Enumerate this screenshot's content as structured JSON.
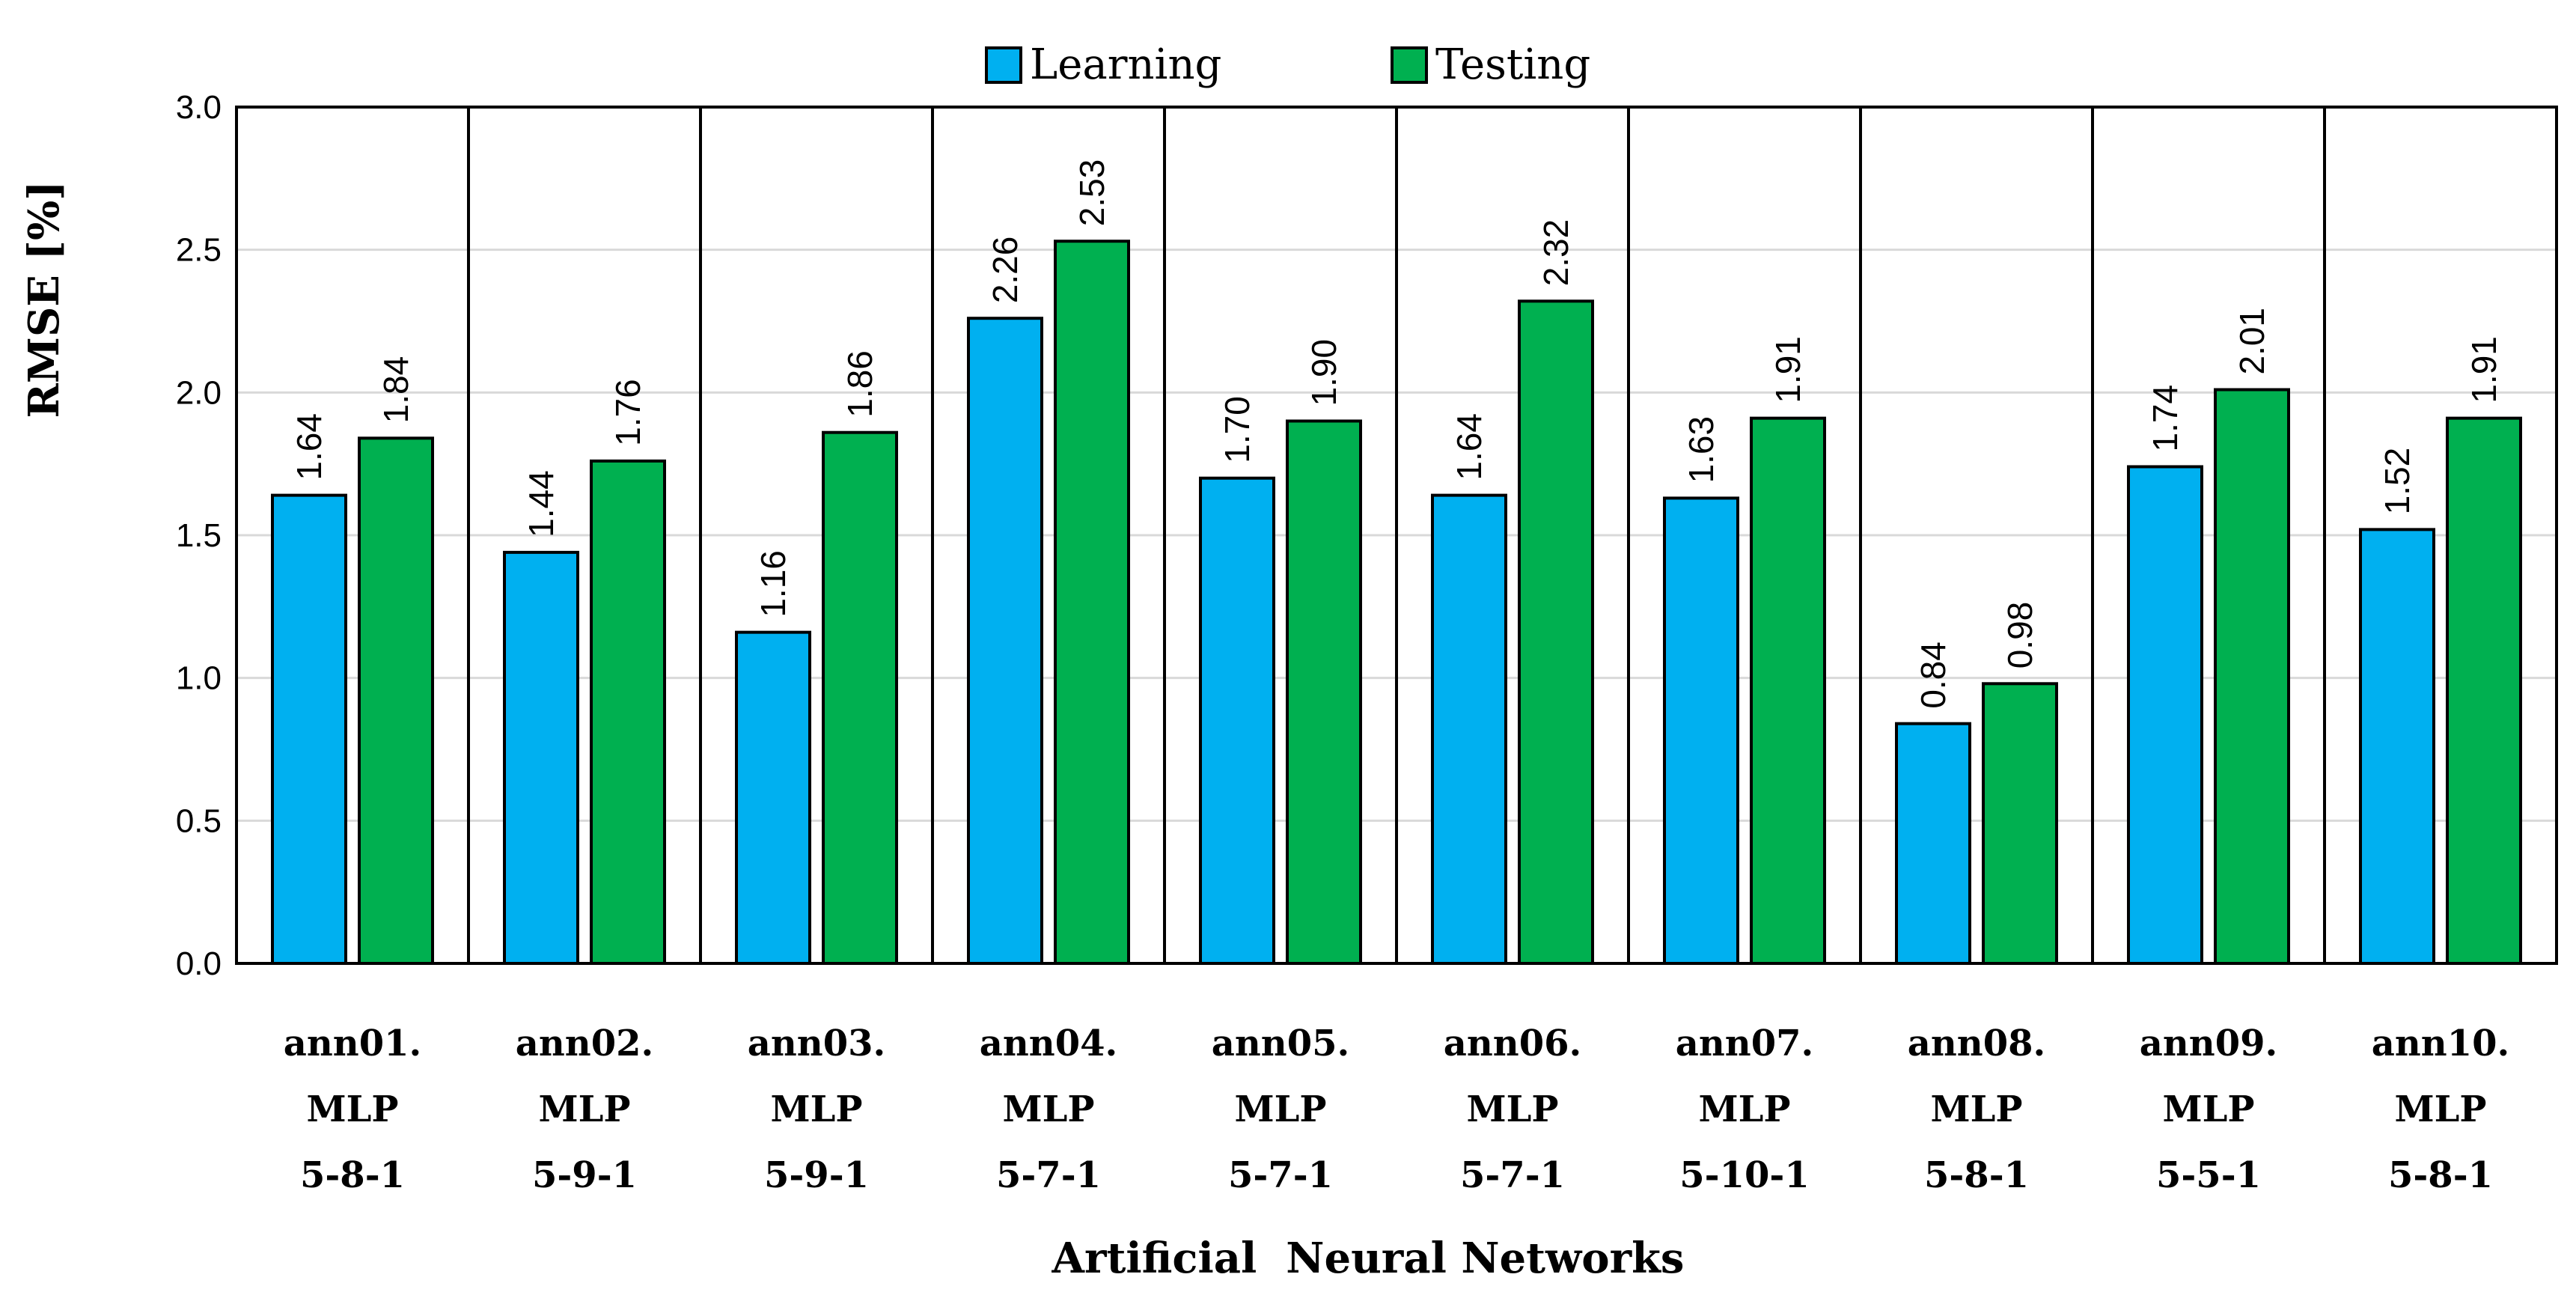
{
  "chart_data": {
    "type": "bar",
    "title": "",
    "xlabel": "Artificial  Neural Networks",
    "ylabel": "RMSE   [%]",
    "ylim": [
      0,
      3.0
    ],
    "yticks": [
      "0.0",
      "0.5",
      "1.0",
      "1.5",
      "2.0",
      "2.5",
      "3.0"
    ],
    "ytick_values": [
      0,
      0.5,
      1.0,
      1.5,
      2.0,
      2.5,
      3.0
    ],
    "grid": true,
    "legend_position": "top-center",
    "categories": [
      [
        "ann01.",
        "MLP",
        "5-8-1"
      ],
      [
        "ann02.",
        "MLP",
        "5-9-1"
      ],
      [
        "ann03.",
        "MLP",
        "5-9-1"
      ],
      [
        "ann04.",
        "MLP",
        "5-7-1"
      ],
      [
        "ann05.",
        "MLP",
        "5-7-1"
      ],
      [
        "ann06.",
        "MLP",
        "5-7-1"
      ],
      [
        "ann07.",
        "MLP",
        "5-10-1"
      ],
      [
        "ann08.",
        "MLP",
        "5-8-1"
      ],
      [
        "ann09.",
        "MLP",
        "5-5-1"
      ],
      [
        "ann10.",
        "MLP",
        "5-8-1"
      ]
    ],
    "series": [
      {
        "name": "Learning",
        "color": "#00b0f0",
        "values": [
          1.64,
          1.44,
          1.16,
          2.26,
          1.7,
          1.64,
          1.63,
          0.84,
          1.74,
          1.52
        ],
        "labels": [
          "1.64",
          "1.44",
          "1.16",
          "2.26",
          "1.70",
          "1.64",
          "1.63",
          "0.84",
          "1.74",
          "1.52"
        ]
      },
      {
        "name": "Testing",
        "color": "#00b050",
        "values": [
          1.84,
          1.76,
          1.86,
          2.53,
          1.9,
          2.32,
          1.91,
          0.98,
          2.01,
          1.91
        ],
        "labels": [
          "1.84",
          "1.76",
          "1.86",
          "2.53",
          "1.90",
          "2.32",
          "1.91",
          "0.98",
          "2.01",
          "1.91"
        ]
      }
    ]
  }
}
